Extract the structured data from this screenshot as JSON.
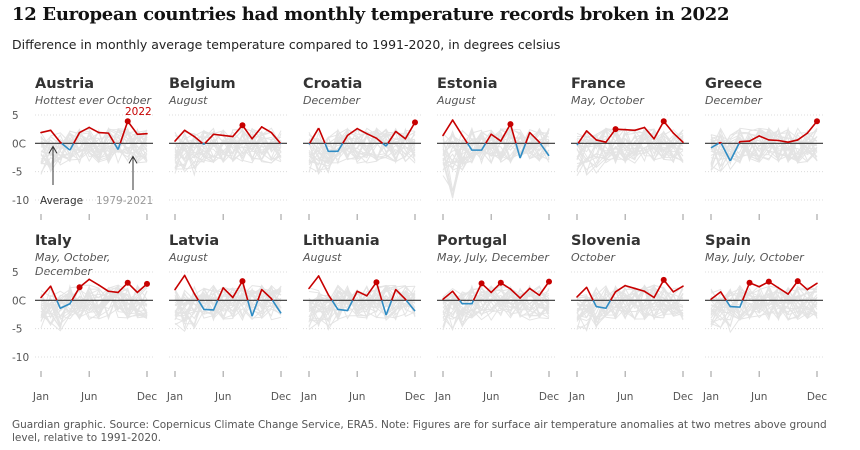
{
  "title": "12 European countries had monthly temperature records broken in 2022",
  "subtitle": "Difference in monthly average temperature compared to 1991-2020, in degrees celsius",
  "footer": "Guardian graphic. Source: Copernicus Climate Change Service, ERA5. Note: Figures are for surface air temperature anomalies at two metres above ground level, relative to 1991-2020.",
  "colors": {
    "warm": "#c70000",
    "cool": "#2f8cc4",
    "history": "#e4e4e4",
    "zero": "#333333",
    "grid": "#dcdcdc"
  },
  "annotations": {
    "year_label": "2022",
    "average_label": "Average",
    "history_label": "1979-2021"
  },
  "chart_data": [
    {
      "type": "line",
      "country": "Austria",
      "records": "Hottest ever October",
      "x": [
        "Jan",
        "Feb",
        "Mar",
        "Apr",
        "May",
        "Jun",
        "Jul",
        "Aug",
        "Sep",
        "Oct",
        "Nov",
        "Dec"
      ],
      "series": [
        {
          "name": "2022",
          "values": [
            1.9,
            2.3,
            0.2,
            -1.2,
            1.9,
            2.8,
            1.9,
            1.8,
            -1.1,
            3.9,
            1.6,
            1.7
          ]
        }
      ],
      "record_months": [
        "Oct"
      ],
      "yticks": [
        5,
        0,
        -5,
        -10
      ],
      "ytick_labels": [
        "5",
        "0C",
        "-5",
        "-10"
      ],
      "ylim": [
        -11,
        6
      ],
      "xtick_labels": [
        "Jan",
        "Jun",
        "Dec"
      ]
    },
    {
      "type": "line",
      "country": "Belgium",
      "records": "August",
      "x": [
        "Jan",
        "Feb",
        "Mar",
        "Apr",
        "May",
        "Jun",
        "Jul",
        "Aug",
        "Sep",
        "Oct",
        "Nov",
        "Dec"
      ],
      "series": [
        {
          "name": "2022",
          "values": [
            0.4,
            2.3,
            1.2,
            -0.2,
            1.6,
            1.4,
            1.2,
            3.2,
            0.8,
            2.9,
            1.9,
            -0.1
          ]
        }
      ],
      "record_months": [
        "Aug"
      ]
    },
    {
      "type": "line",
      "country": "Croatia",
      "records": "December",
      "x": [
        "Jan",
        "Feb",
        "Mar",
        "Apr",
        "May",
        "Jun",
        "Jul",
        "Aug",
        "Sep",
        "Oct",
        "Nov",
        "Dec"
      ],
      "series": [
        {
          "name": "2022",
          "values": [
            -0.2,
            2.7,
            -1.4,
            -1.4,
            1.4,
            2.6,
            1.7,
            0.9,
            -0.5,
            2.1,
            0.8,
            3.7
          ]
        }
      ],
      "record_months": [
        "Dec"
      ]
    },
    {
      "type": "line",
      "country": "Estonia",
      "records": "August",
      "x": [
        "Jan",
        "Feb",
        "Mar",
        "Apr",
        "May",
        "Jun",
        "Jul",
        "Aug",
        "Sep",
        "Oct",
        "Nov",
        "Dec"
      ],
      "series": [
        {
          "name": "2022",
          "values": [
            1.4,
            4.1,
            1.4,
            -1.2,
            -1.2,
            1.6,
            0.4,
            3.4,
            -2.6,
            1.9,
            0.2,
            -2.2
          ]
        }
      ],
      "record_months": [
        "Aug"
      ]
    },
    {
      "type": "line",
      "country": "France",
      "records": "May, October",
      "x": [
        "Jan",
        "Feb",
        "Mar",
        "Apr",
        "May",
        "Jun",
        "Jul",
        "Aug",
        "Sep",
        "Oct",
        "Nov",
        "Dec"
      ],
      "series": [
        {
          "name": "2022",
          "values": [
            -0.3,
            2.2,
            0.6,
            0.2,
            2.5,
            2.4,
            2.3,
            2.8,
            0.8,
            3.9,
            1.8,
            0.2
          ]
        }
      ],
      "record_months": [
        "May",
        "Oct"
      ]
    },
    {
      "type": "line",
      "country": "Greece",
      "records": "December",
      "x": [
        "Jan",
        "Feb",
        "Mar",
        "Apr",
        "May",
        "Jun",
        "Jul",
        "Aug",
        "Sep",
        "Oct",
        "Nov",
        "Dec"
      ],
      "series": [
        {
          "name": "2022",
          "values": [
            -0.8,
            0.2,
            -3.1,
            0.3,
            0.4,
            1.3,
            0.6,
            0.5,
            0.2,
            0.6,
            1.8,
            3.9
          ]
        }
      ],
      "record_months": [
        "Dec"
      ]
    },
    {
      "type": "line",
      "country": "Italy",
      "records": "May, October, December",
      "x": [
        "Jan",
        "Feb",
        "Mar",
        "Apr",
        "May",
        "Jun",
        "Jul",
        "Aug",
        "Sep",
        "Oct",
        "Nov",
        "Dec"
      ],
      "series": [
        {
          "name": "2022",
          "values": [
            0.5,
            2.5,
            -1.4,
            -0.6,
            2.3,
            3.7,
            2.7,
            1.6,
            1.4,
            3.1,
            1.4,
            2.9
          ]
        }
      ],
      "record_months": [
        "May",
        "Oct",
        "Dec"
      ]
    },
    {
      "type": "line",
      "country": "Latvia",
      "records": "August",
      "x": [
        "Jan",
        "Feb",
        "Mar",
        "Apr",
        "May",
        "Jun",
        "Jul",
        "Aug",
        "Sep",
        "Oct",
        "Nov",
        "Dec"
      ],
      "series": [
        {
          "name": "2022",
          "values": [
            1.9,
            4.4,
            1.2,
            -1.6,
            -1.7,
            2.2,
            0.5,
            3.4,
            -2.8,
            1.9,
            0.3,
            -2.3
          ]
        }
      ],
      "record_months": [
        "Aug"
      ]
    },
    {
      "type": "line",
      "country": "Lithuania",
      "records": "August",
      "x": [
        "Jan",
        "Feb",
        "Mar",
        "Apr",
        "May",
        "Jun",
        "Jul",
        "Aug",
        "Sep",
        "Oct",
        "Nov",
        "Dec"
      ],
      "series": [
        {
          "name": "2022",
          "values": [
            2.1,
            4.3,
            1.0,
            -1.6,
            -1.8,
            1.6,
            0.8,
            3.2,
            -2.6,
            1.9,
            0.2,
            -1.9
          ]
        }
      ],
      "record_months": [
        "Aug"
      ]
    },
    {
      "type": "line",
      "country": "Portugal",
      "records": "May, July, December",
      "x": [
        "Jan",
        "Feb",
        "Mar",
        "Apr",
        "May",
        "Jun",
        "Jul",
        "Aug",
        "Sep",
        "Oct",
        "Nov",
        "Dec"
      ],
      "series": [
        {
          "name": "2022",
          "values": [
            0.2,
            1.6,
            -0.6,
            -0.6,
            3.0,
            1.4,
            3.1,
            2.0,
            0.4,
            2.1,
            0.9,
            3.3
          ]
        }
      ],
      "record_months": [
        "May",
        "Jul",
        "Dec"
      ]
    },
    {
      "type": "line",
      "country": "Slovenia",
      "records": "October",
      "x": [
        "Jan",
        "Feb",
        "Mar",
        "Apr",
        "May",
        "Jun",
        "Jul",
        "Aug",
        "Sep",
        "Oct",
        "Nov",
        "Dec"
      ],
      "series": [
        {
          "name": "2022",
          "values": [
            0.6,
            2.3,
            -1.1,
            -1.4,
            1.5,
            2.6,
            2.1,
            1.6,
            0.5,
            3.6,
            1.5,
            2.5
          ]
        }
      ],
      "record_months": [
        "Oct"
      ]
    },
    {
      "type": "line",
      "country": "Spain",
      "records": "May, July, October",
      "x": [
        "Jan",
        "Feb",
        "Mar",
        "Apr",
        "May",
        "Jun",
        "Jul",
        "Aug",
        "Sep",
        "Oct",
        "Nov",
        "Dec"
      ],
      "series": [
        {
          "name": "2022",
          "values": [
            0.2,
            1.5,
            -1.1,
            -1.2,
            3.1,
            2.4,
            3.3,
            2.2,
            1.1,
            3.4,
            1.9,
            3.0
          ]
        }
      ],
      "record_months": [
        "May",
        "Jul",
        "Oct"
      ]
    }
  ]
}
